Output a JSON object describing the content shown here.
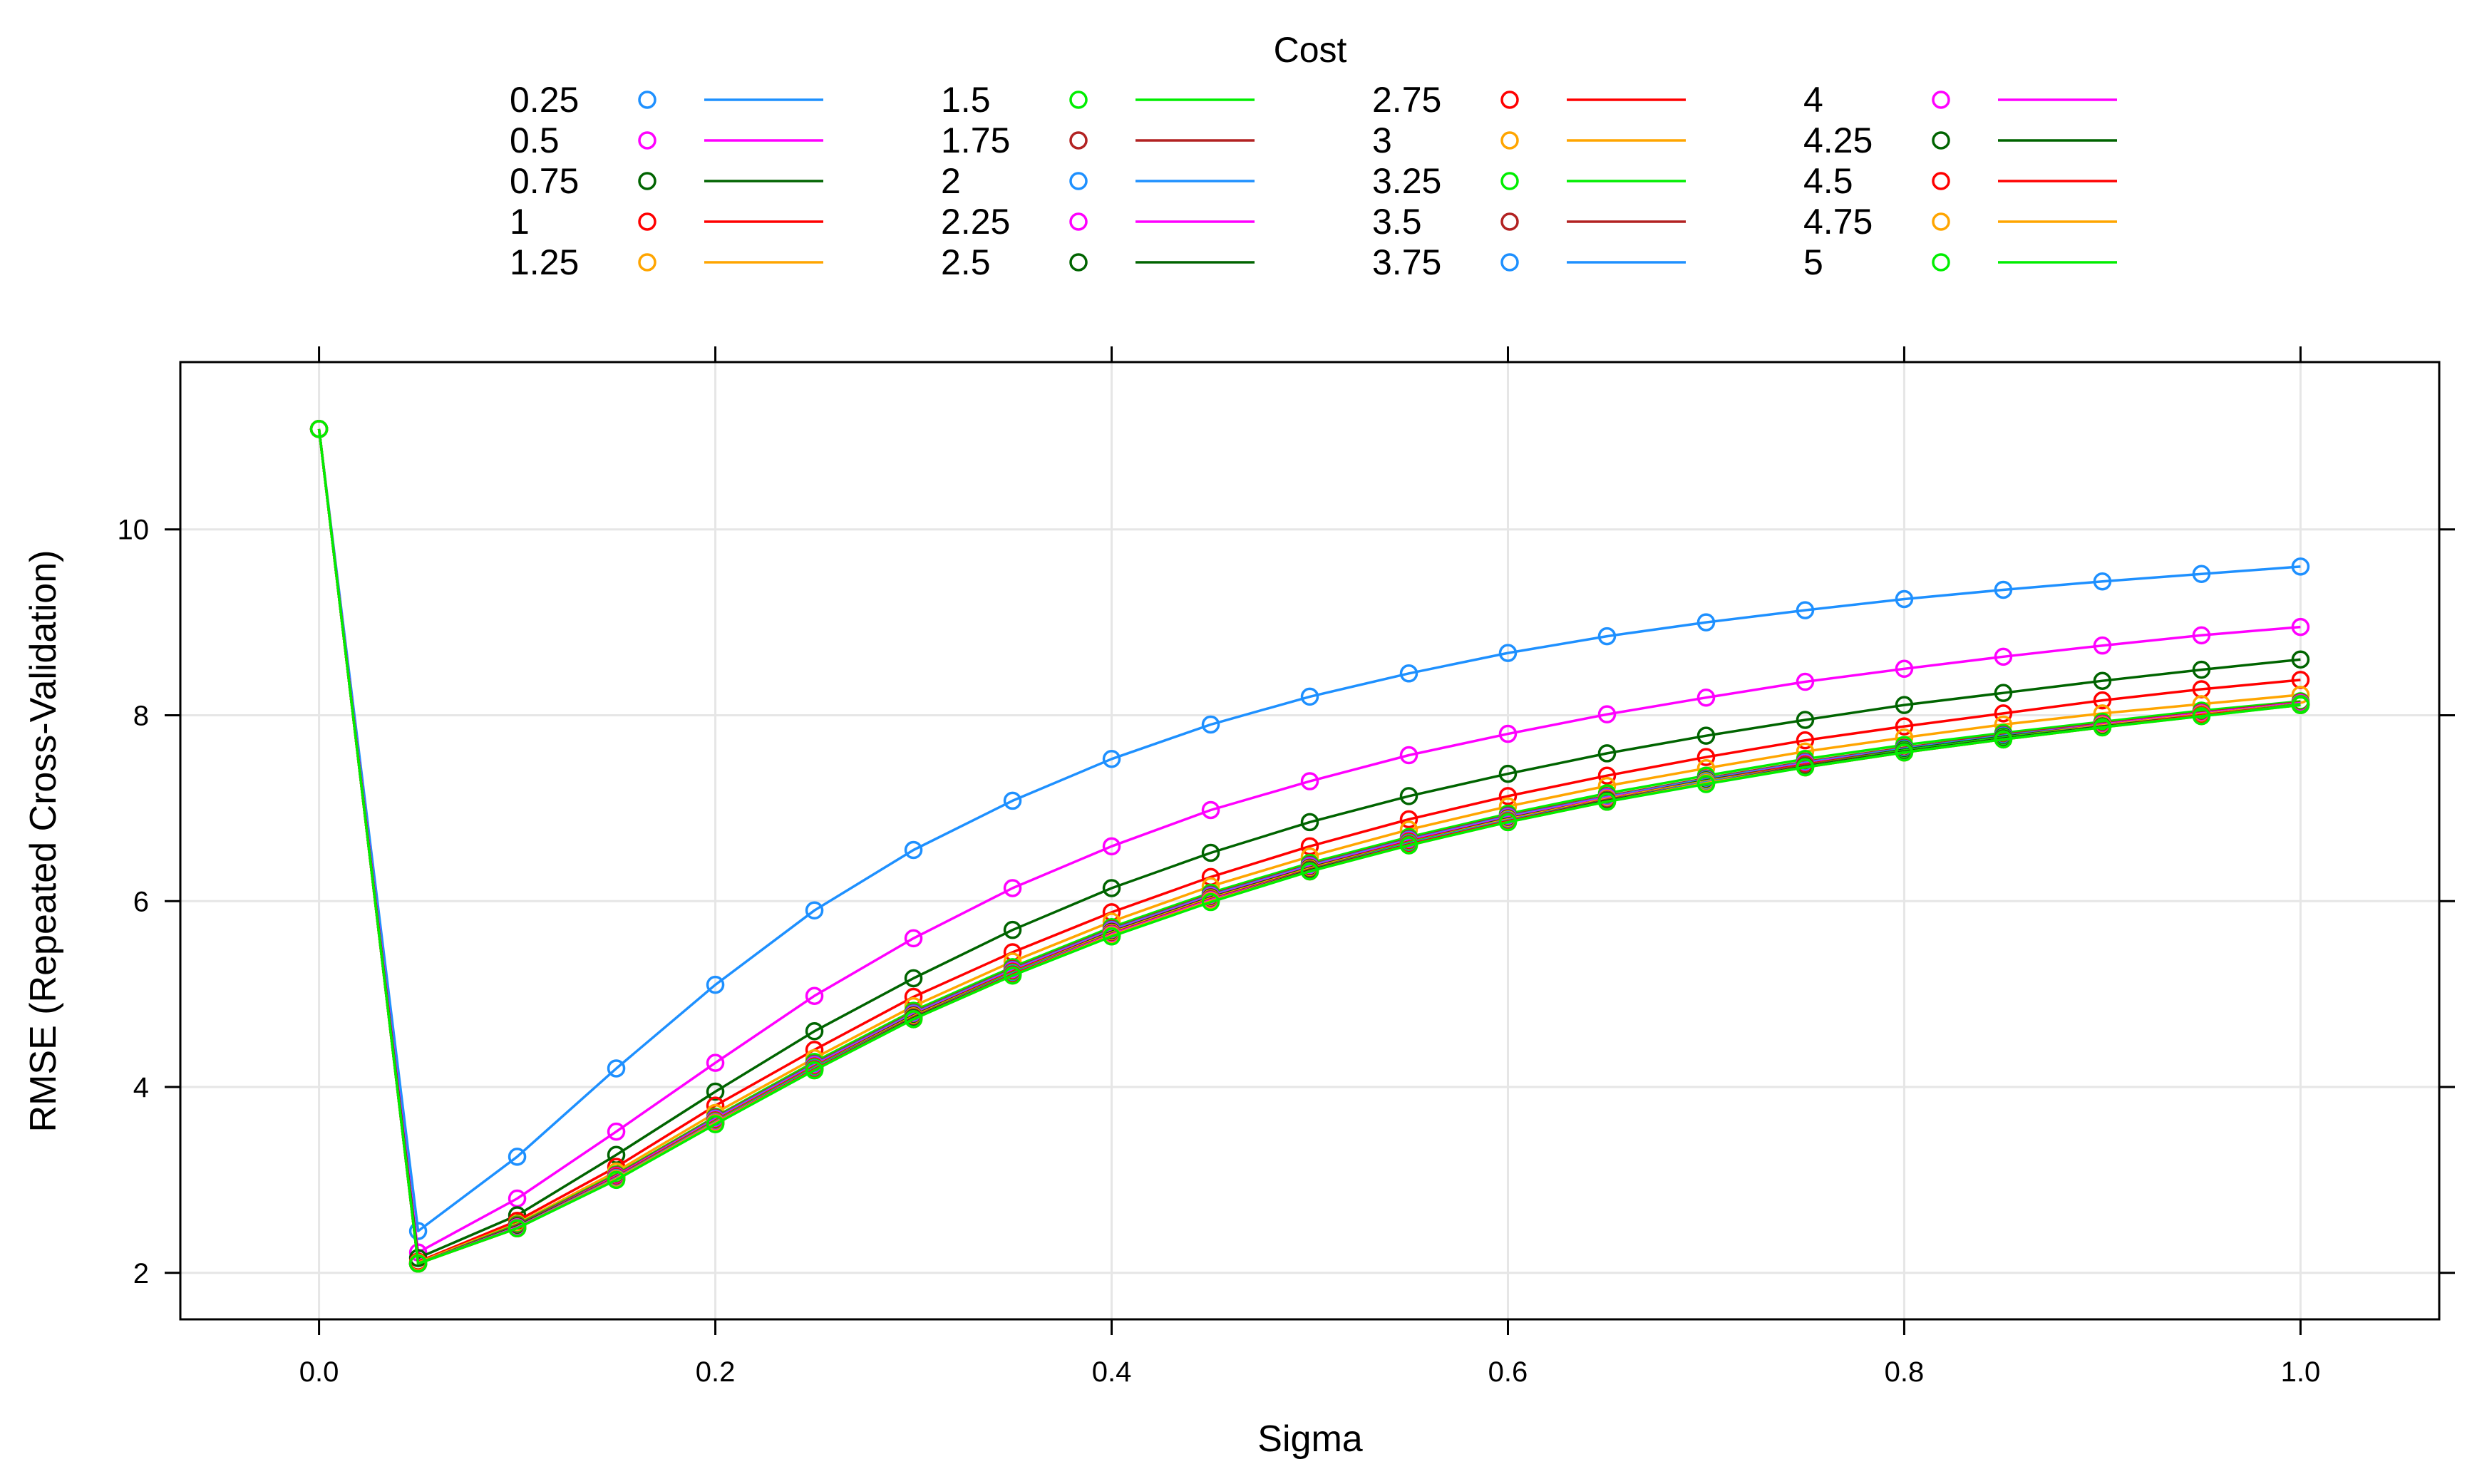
{
  "chart_data": {
    "type": "line",
    "title": "",
    "legend_title": "Cost",
    "legend_position": "top",
    "xlabel": "Sigma",
    "ylabel": "RMSE (Repeated Cross-Validation)",
    "xlim": [
      -0.07,
      1.07
    ],
    "ylim": [
      1.5,
      11.8
    ],
    "xticks": [
      0.0,
      0.2,
      0.4,
      0.6,
      0.8,
      1.0
    ],
    "xtick_labels": [
      "0.0",
      "0.2",
      "0.4",
      "0.6",
      "0.8",
      "1.0"
    ],
    "yticks": [
      2,
      4,
      6,
      8,
      10
    ],
    "ytick_labels": [
      "2",
      "4",
      "6",
      "8",
      "10"
    ],
    "grid": true,
    "x": [
      0.0,
      0.05,
      0.1,
      0.15,
      0.2,
      0.25,
      0.3,
      0.35,
      0.4,
      0.45,
      0.5,
      0.55,
      0.6,
      0.65,
      0.7,
      0.75,
      0.8,
      0.85,
      0.9,
      0.95,
      1.0
    ],
    "series": [
      {
        "name": "0.25",
        "color": "#1E90FF",
        "values": [
          11.08,
          2.45,
          3.25,
          4.2,
          5.1,
          5.9,
          6.55,
          7.08,
          7.53,
          7.9,
          8.2,
          8.45,
          8.67,
          8.85,
          9.0,
          9.13,
          9.25,
          9.35,
          9.44,
          9.52,
          9.6
        ]
      },
      {
        "name": "0.5",
        "color": "#FF00FF",
        "values": [
          11.08,
          2.22,
          2.8,
          3.52,
          4.26,
          4.98,
          5.6,
          6.14,
          6.59,
          6.98,
          7.29,
          7.57,
          7.8,
          8.01,
          8.19,
          8.36,
          8.5,
          8.63,
          8.75,
          8.86,
          8.95
        ]
      },
      {
        "name": "0.75",
        "color": "#006400",
        "values": [
          11.08,
          2.16,
          2.62,
          3.27,
          3.95,
          4.6,
          5.17,
          5.69,
          6.14,
          6.52,
          6.85,
          7.13,
          7.37,
          7.59,
          7.78,
          7.95,
          8.11,
          8.24,
          8.37,
          8.49,
          8.6
        ]
      },
      {
        "name": "1",
        "color": "#FF0000",
        "values": [
          11.08,
          2.12,
          2.56,
          3.14,
          3.8,
          4.4,
          4.97,
          5.45,
          5.88,
          6.26,
          6.59,
          6.88,
          7.13,
          7.35,
          7.55,
          7.73,
          7.88,
          8.02,
          8.16,
          8.28,
          8.38
        ]
      },
      {
        "name": "1.25",
        "color": "#FFA500",
        "values": [
          11.08,
          2.11,
          2.53,
          3.09,
          3.72,
          4.31,
          4.87,
          5.35,
          5.78,
          6.16,
          6.48,
          6.77,
          7.02,
          7.24,
          7.43,
          7.61,
          7.76,
          7.9,
          8.02,
          8.12,
          8.22
        ]
      },
      {
        "name": "1.5",
        "color": "#00EE00",
        "values": [
          11.08,
          2.1,
          2.52,
          3.06,
          3.68,
          4.27,
          4.82,
          5.29,
          5.72,
          6.09,
          6.41,
          6.69,
          6.94,
          7.16,
          7.35,
          7.53,
          7.68,
          7.81,
          7.93,
          8.05,
          8.15
        ]
      },
      {
        "name": "1.75",
        "color": "#B22222",
        "values": [
          11.08,
          2.1,
          2.51,
          3.05,
          3.67,
          4.25,
          4.8,
          5.27,
          5.7,
          6.07,
          6.39,
          6.67,
          6.92,
          7.13,
          7.32,
          7.5,
          7.65,
          7.79,
          7.91,
          8.03,
          8.14
        ]
      },
      {
        "name": "2",
        "color": "#1E90FF",
        "values": [
          11.08,
          2.1,
          2.5,
          3.04,
          3.66,
          4.24,
          4.79,
          5.26,
          5.69,
          6.06,
          6.38,
          6.66,
          6.91,
          7.12,
          7.31,
          7.49,
          7.64,
          7.78,
          7.9,
          8.02,
          8.13
        ]
      },
      {
        "name": "2.25",
        "color": "#FF00FF",
        "values": [
          11.08,
          2.1,
          2.5,
          3.04,
          3.65,
          4.23,
          4.78,
          5.25,
          5.68,
          6.05,
          6.37,
          6.65,
          6.9,
          7.11,
          7.3,
          7.48,
          7.63,
          7.77,
          7.9,
          8.02,
          8.13
        ]
      },
      {
        "name": "2.5",
        "color": "#006400",
        "values": [
          11.08,
          2.1,
          2.5,
          3.03,
          3.64,
          4.22,
          4.77,
          5.24,
          5.67,
          6.04,
          6.36,
          6.64,
          6.89,
          7.1,
          7.3,
          7.47,
          7.63,
          7.77,
          7.89,
          8.01,
          8.12
        ]
      },
      {
        "name": "2.75",
        "color": "#FF0000",
        "values": [
          11.08,
          2.1,
          2.49,
          3.03,
          3.64,
          4.22,
          4.76,
          5.24,
          5.66,
          6.03,
          6.35,
          6.64,
          6.88,
          7.1,
          7.29,
          7.47,
          7.62,
          7.76,
          7.89,
          8.01,
          8.12
        ]
      },
      {
        "name": "3",
        "color": "#FFA500",
        "values": [
          11.08,
          2.1,
          2.49,
          3.02,
          3.63,
          4.21,
          4.76,
          5.23,
          5.66,
          6.03,
          6.35,
          6.63,
          6.88,
          7.1,
          7.29,
          7.46,
          7.62,
          7.76,
          7.89,
          8.01,
          8.12
        ]
      },
      {
        "name": "3.25",
        "color": "#00EE00",
        "values": [
          11.08,
          2.1,
          2.49,
          3.02,
          3.63,
          4.21,
          4.75,
          5.23,
          5.65,
          6.02,
          6.34,
          6.63,
          6.87,
          7.09,
          7.28,
          7.46,
          7.62,
          7.76,
          7.88,
          8.0,
          8.12
        ]
      },
      {
        "name": "3.5",
        "color": "#B22222",
        "values": [
          11.08,
          2.1,
          2.49,
          3.02,
          3.62,
          4.2,
          4.75,
          5.22,
          5.65,
          6.02,
          6.34,
          6.62,
          6.87,
          7.09,
          7.28,
          7.46,
          7.61,
          7.75,
          7.88,
          8.0,
          8.11
        ]
      },
      {
        "name": "3.75",
        "color": "#1E90FF",
        "values": [
          11.08,
          2.1,
          2.49,
          3.02,
          3.62,
          4.2,
          4.74,
          5.22,
          5.64,
          6.01,
          6.33,
          6.62,
          6.87,
          7.08,
          7.28,
          7.45,
          7.61,
          7.75,
          7.88,
          8.0,
          8.11
        ]
      },
      {
        "name": "4",
        "color": "#FF00FF",
        "values": [
          11.08,
          2.1,
          2.49,
          3.01,
          3.62,
          4.19,
          4.74,
          5.21,
          5.64,
          6.01,
          6.33,
          6.61,
          6.86,
          7.08,
          7.27,
          7.45,
          7.61,
          7.75,
          7.88,
          8.0,
          8.11
        ]
      },
      {
        "name": "4.25",
        "color": "#006400",
        "values": [
          11.08,
          2.1,
          2.48,
          3.01,
          3.61,
          4.19,
          4.74,
          5.21,
          5.63,
          6.0,
          6.33,
          6.61,
          6.86,
          7.08,
          7.27,
          7.45,
          7.61,
          7.75,
          7.88,
          8.0,
          8.11
        ]
      },
      {
        "name": "4.5",
        "color": "#FF0000",
        "values": [
          11.08,
          2.1,
          2.48,
          3.01,
          3.61,
          4.19,
          4.73,
          5.21,
          5.63,
          6.0,
          6.32,
          6.61,
          6.86,
          7.07,
          7.27,
          7.44,
          7.6,
          7.74,
          7.87,
          8.0,
          8.11
        ]
      },
      {
        "name": "4.75",
        "color": "#FFA500",
        "values": [
          11.08,
          2.1,
          2.48,
          3.01,
          3.61,
          4.18,
          4.73,
          5.2,
          5.63,
          6.0,
          6.32,
          6.6,
          6.85,
          7.07,
          7.27,
          7.44,
          7.6,
          7.74,
          7.87,
          7.99,
          8.11
        ]
      },
      {
        "name": "5",
        "color": "#00EE00",
        "values": [
          11.08,
          2.1,
          2.48,
          3.0,
          3.6,
          4.18,
          4.73,
          5.2,
          5.62,
          5.99,
          6.32,
          6.6,
          6.85,
          7.07,
          7.26,
          7.44,
          7.6,
          7.74,
          7.87,
          7.99,
          8.11
        ]
      }
    ]
  }
}
